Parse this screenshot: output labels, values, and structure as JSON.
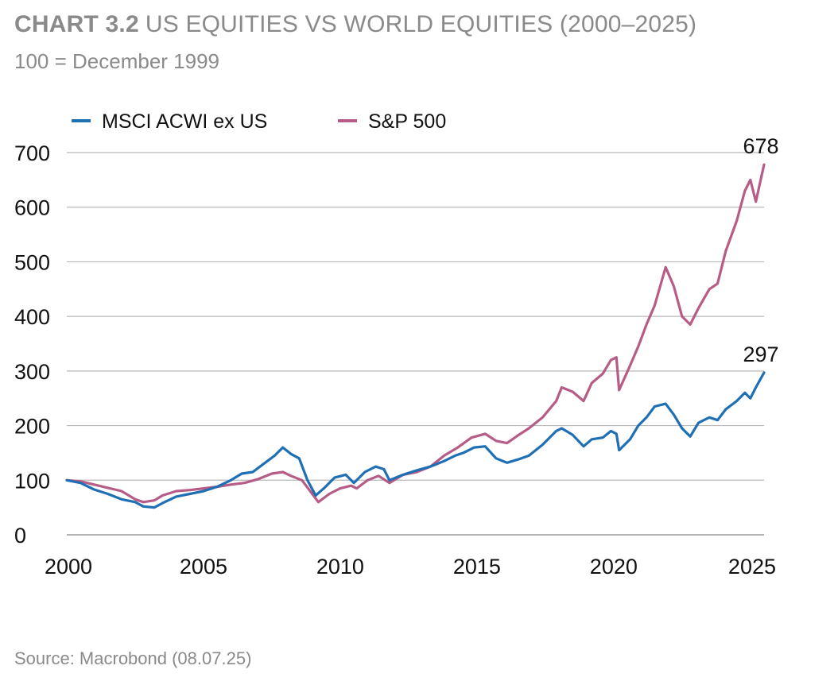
{
  "header": {
    "title_bold": "CHART 3.2",
    "title_rest": "US EQUITIES VS WORLD EQUITIES (2000–2025)",
    "subtitle": "100 = December 1999"
  },
  "footer": {
    "source": "Source: Macrobond (08.07.25)"
  },
  "chart_data": {
    "type": "line",
    "title": "US EQUITIES VS WORLD EQUITIES (2000–2025)",
    "subtitle": "100 = December 1999",
    "xlabel": "",
    "ylabel": "",
    "xlim": [
      2000,
      2025.5
    ],
    "ylim": [
      0,
      700
    ],
    "x_ticks": [
      2000,
      2005,
      2010,
      2015,
      2020,
      2025
    ],
    "x_tick_labels": [
      "2000",
      "2005",
      "2010",
      "2015",
      "2020",
      "2025"
    ],
    "y_ticks": [
      0,
      100,
      200,
      300,
      400,
      500,
      600,
      700
    ],
    "y_tick_labels": [
      "0",
      "100",
      "200",
      "300",
      "400",
      "500",
      "600",
      "700"
    ],
    "grid": "horizontal",
    "legend": "top-left",
    "series": [
      {
        "name": "MSCI ACWI ex US",
        "color": "#1f6fb5",
        "end_label": "297",
        "points": [
          [
            2000.0,
            100
          ],
          [
            2000.5,
            95
          ],
          [
            2001.0,
            83
          ],
          [
            2001.5,
            75
          ],
          [
            2002.0,
            65
          ],
          [
            2002.5,
            60
          ],
          [
            2002.8,
            52
          ],
          [
            2003.2,
            50
          ],
          [
            2003.5,
            58
          ],
          [
            2004.0,
            70
          ],
          [
            2004.5,
            75
          ],
          [
            2005.0,
            80
          ],
          [
            2005.5,
            88
          ],
          [
            2006.0,
            100
          ],
          [
            2006.4,
            112
          ],
          [
            2006.8,
            115
          ],
          [
            2007.2,
            130
          ],
          [
            2007.6,
            145
          ],
          [
            2007.9,
            160
          ],
          [
            2008.2,
            148
          ],
          [
            2008.5,
            140
          ],
          [
            2008.8,
            100
          ],
          [
            2009.1,
            72
          ],
          [
            2009.4,
            85
          ],
          [
            2009.8,
            105
          ],
          [
            2010.2,
            110
          ],
          [
            2010.5,
            95
          ],
          [
            2010.9,
            115
          ],
          [
            2011.3,
            125
          ],
          [
            2011.6,
            120
          ],
          [
            2011.8,
            100
          ],
          [
            2012.3,
            110
          ],
          [
            2012.8,
            118
          ],
          [
            2013.3,
            125
          ],
          [
            2013.8,
            135
          ],
          [
            2014.2,
            145
          ],
          [
            2014.5,
            150
          ],
          [
            2014.9,
            160
          ],
          [
            2015.3,
            162
          ],
          [
            2015.7,
            140
          ],
          [
            2016.1,
            132
          ],
          [
            2016.5,
            138
          ],
          [
            2016.9,
            145
          ],
          [
            2017.4,
            165
          ],
          [
            2017.9,
            190
          ],
          [
            2018.1,
            195
          ],
          [
            2018.5,
            183
          ],
          [
            2018.9,
            162
          ],
          [
            2019.2,
            175
          ],
          [
            2019.6,
            178
          ],
          [
            2019.9,
            190
          ],
          [
            2020.1,
            185
          ],
          [
            2020.2,
            155
          ],
          [
            2020.6,
            175
          ],
          [
            2020.9,
            200
          ],
          [
            2021.2,
            215
          ],
          [
            2021.5,
            235
          ],
          [
            2021.9,
            240
          ],
          [
            2022.2,
            220
          ],
          [
            2022.5,
            195
          ],
          [
            2022.8,
            180
          ],
          [
            2023.1,
            205
          ],
          [
            2023.5,
            215
          ],
          [
            2023.8,
            210
          ],
          [
            2024.1,
            230
          ],
          [
            2024.5,
            245
          ],
          [
            2024.8,
            260
          ],
          [
            2025.0,
            250
          ],
          [
            2025.2,
            270
          ],
          [
            2025.5,
            297
          ]
        ]
      },
      {
        "name": "S&P 500",
        "color": "#b65c86",
        "end_label": "678",
        "points": [
          [
            2000.0,
            100
          ],
          [
            2000.5,
            98
          ],
          [
            2001.0,
            92
          ],
          [
            2001.5,
            86
          ],
          [
            2002.0,
            80
          ],
          [
            2002.5,
            65
          ],
          [
            2002.8,
            60
          ],
          [
            2003.2,
            63
          ],
          [
            2003.5,
            72
          ],
          [
            2004.0,
            80
          ],
          [
            2004.5,
            82
          ],
          [
            2005.0,
            85
          ],
          [
            2005.5,
            88
          ],
          [
            2006.0,
            92
          ],
          [
            2006.5,
            95
          ],
          [
            2007.0,
            102
          ],
          [
            2007.5,
            112
          ],
          [
            2007.9,
            115
          ],
          [
            2008.2,
            108
          ],
          [
            2008.6,
            100
          ],
          [
            2008.9,
            80
          ],
          [
            2009.2,
            60
          ],
          [
            2009.6,
            75
          ],
          [
            2010.0,
            85
          ],
          [
            2010.4,
            90
          ],
          [
            2010.6,
            85
          ],
          [
            2011.0,
            100
          ],
          [
            2011.4,
            108
          ],
          [
            2011.8,
            95
          ],
          [
            2012.3,
            110
          ],
          [
            2012.8,
            115
          ],
          [
            2013.3,
            125
          ],
          [
            2013.8,
            145
          ],
          [
            2014.3,
            160
          ],
          [
            2014.8,
            178
          ],
          [
            2015.3,
            185
          ],
          [
            2015.7,
            172
          ],
          [
            2016.1,
            168
          ],
          [
            2016.5,
            182
          ],
          [
            2016.9,
            195
          ],
          [
            2017.4,
            215
          ],
          [
            2017.9,
            245
          ],
          [
            2018.1,
            270
          ],
          [
            2018.5,
            262
          ],
          [
            2018.9,
            245
          ],
          [
            2019.2,
            278
          ],
          [
            2019.6,
            295
          ],
          [
            2019.9,
            320
          ],
          [
            2020.1,
            325
          ],
          [
            2020.2,
            265
          ],
          [
            2020.6,
            310
          ],
          [
            2020.9,
            345
          ],
          [
            2021.2,
            385
          ],
          [
            2021.5,
            420
          ],
          [
            2021.9,
            490
          ],
          [
            2022.2,
            455
          ],
          [
            2022.5,
            400
          ],
          [
            2022.8,
            385
          ],
          [
            2023.1,
            415
          ],
          [
            2023.5,
            450
          ],
          [
            2023.8,
            460
          ],
          [
            2024.1,
            520
          ],
          [
            2024.5,
            575
          ],
          [
            2024.8,
            630
          ],
          [
            2025.0,
            650
          ],
          [
            2025.2,
            610
          ],
          [
            2025.5,
            678
          ]
        ]
      }
    ]
  }
}
